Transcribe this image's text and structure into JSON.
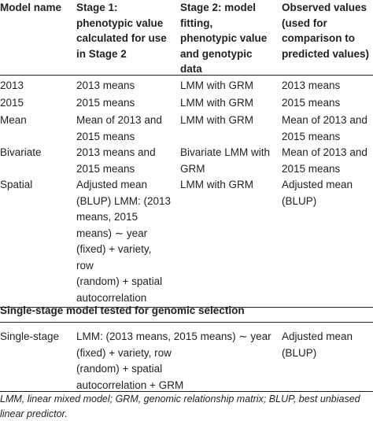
{
  "table": {
    "headers": [
      "Model name",
      "Stage 1:\nphenotypic value\ncalculated for use\nin Stage 2",
      "Stage 2: model\nfitting,\nphenotypic value\nand genotypic\ndata",
      "Observed values\n(used for\ncomparison to\npredicted values)"
    ],
    "rows": [
      [
        "2013",
        "2013 means",
        "LMM with GRM",
        "2013 means"
      ],
      [
        "2015",
        "2015 means",
        "LMM with GRM",
        "2015 means"
      ],
      [
        "Mean",
        "Mean of 2013 and\n2015 means",
        "LMM with GRM",
        "Mean of 2013 and\n2015 means"
      ],
      [
        "Bivariate",
        "2013 means and\n2015 means",
        "Bivariate LMM with\nGRM",
        "Mean of 2013 and\n2015 means"
      ],
      [
        "Spatial",
        "Adjusted mean\n(BLUP) LMM: (2013\nmeans, 2015\nmeans) ∼ year\n(fixed) + variety,\nrow\n(random) + spatial\nautocorrelation",
        "LMM with GRM",
        "Adjusted mean\n(BLUP)"
      ]
    ],
    "section_title": "Single-stage model tested for genomic selection",
    "single_stage": {
      "name": "Single-stage",
      "model": "LMM: (2013 means, 2015 means) ∼ year\n(fixed) + variety, row\n(random) + spatial\nautocorrelation + GRM",
      "observed": "Adjusted mean\n(BLUP)"
    }
  },
  "footnote": "LMM, linear mixed model; GRM, genomic relationship matrix; BLUP, best unbiased\nlinear predictor."
}
